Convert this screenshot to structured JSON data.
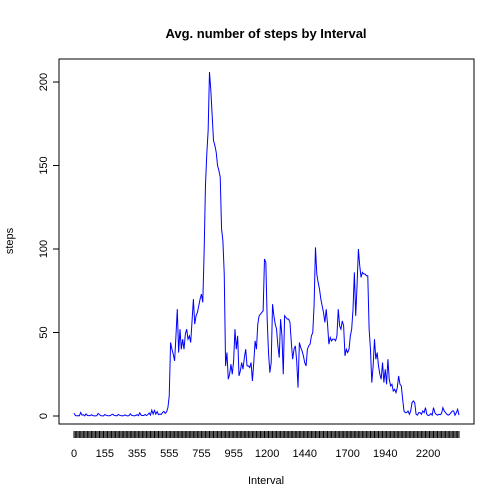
{
  "chart_data": {
    "type": "line",
    "title": "Avg. number of steps by Interval",
    "xlabel": "Interval",
    "ylabel": "steps",
    "ylim": [
      0,
      206
    ],
    "y_ticks": [
      0,
      50,
      100,
      150,
      200
    ],
    "x_tick_labels": [
      "0",
      "155",
      "355",
      "555",
      "755",
      "955",
      "1200",
      "1440",
      "1700",
      "1940",
      "2200"
    ],
    "x_tick_positions": [
      0,
      23,
      47,
      71,
      95,
      119,
      144,
      172,
      204,
      232,
      264
    ],
    "n_intervals": 288,
    "grid": false,
    "legend": "none",
    "series": [
      {
        "color": "#0000ff",
        "points": [
          [
            0,
            1.7
          ],
          [
            1,
            0.3
          ],
          [
            2,
            0.1
          ],
          [
            3,
            0.2
          ],
          [
            4,
            0.1
          ],
          [
            5,
            2.1
          ],
          [
            6,
            0.5
          ],
          [
            7,
            0.8
          ],
          [
            8,
            0.1
          ],
          [
            9,
            1.3
          ],
          [
            10,
            0.3
          ],
          [
            11,
            0.2
          ],
          [
            12,
            0.2
          ],
          [
            13,
            0.7
          ],
          [
            14,
            0.3
          ],
          [
            15,
            0.1
          ],
          [
            16,
            0.1
          ],
          [
            17,
            0.2
          ],
          [
            18,
            1.5
          ],
          [
            19,
            0.8
          ],
          [
            20,
            0.2
          ],
          [
            21,
            0.1
          ],
          [
            22,
            0.1
          ],
          [
            23,
            0.9
          ],
          [
            24,
            0.4
          ],
          [
            25,
            0.2
          ],
          [
            26,
            0.1
          ],
          [
            27,
            0.3
          ],
          [
            28,
            0.8
          ],
          [
            29,
            1.1
          ],
          [
            30,
            0.3
          ],
          [
            31,
            0.2
          ],
          [
            32,
            0.1
          ],
          [
            33,
            0.9
          ],
          [
            34,
            0.5
          ],
          [
            35,
            0.2
          ],
          [
            36,
            0.1
          ],
          [
            37,
            0.2
          ],
          [
            38,
            0.7
          ],
          [
            39,
            0.2
          ],
          [
            40,
            0.1
          ],
          [
            41,
            0.2
          ],
          [
            42,
            1.3
          ],
          [
            43,
            0.4
          ],
          [
            44,
            0.2
          ],
          [
            45,
            0.1
          ],
          [
            46,
            0.3
          ],
          [
            47,
            0.8
          ],
          [
            48,
            0.2
          ],
          [
            49,
            1.9
          ],
          [
            50,
            0.5
          ],
          [
            51,
            0.3
          ],
          [
            52,
            0.3
          ],
          [
            53,
            0.9
          ],
          [
            54,
            0.3
          ],
          [
            55,
            0.8
          ],
          [
            56,
            1.8
          ],
          [
            57,
            0.5
          ],
          [
            58,
            3.5
          ],
          [
            59,
            1.2
          ],
          [
            60,
            3.3
          ],
          [
            61,
            1.1
          ],
          [
            62,
            2.6
          ],
          [
            63,
            0.8
          ],
          [
            64,
            1.2
          ],
          [
            65,
            0.9
          ],
          [
            66,
            2.1
          ],
          [
            67,
            2.8
          ],
          [
            68,
            1.6
          ],
          [
            69,
            2.4
          ],
          [
            70,
            5.0
          ],
          [
            71,
            12.0
          ],
          [
            72,
            44.0
          ],
          [
            73,
            40.0
          ],
          [
            74,
            37.0
          ],
          [
            75,
            33.0
          ],
          [
            76,
            48.0
          ],
          [
            77,
            64.0
          ],
          [
            78,
            38.0
          ],
          [
            79,
            52.0
          ],
          [
            80,
            40.0
          ],
          [
            81,
            46.0
          ],
          [
            82,
            40.0
          ],
          [
            83,
            49.0
          ],
          [
            84,
            52.0
          ],
          [
            85,
            46.0
          ],
          [
            86,
            48.0
          ],
          [
            87,
            44.0
          ],
          [
            88,
            57.0
          ],
          [
            89,
            70.0
          ],
          [
            90,
            55.0
          ],
          [
            91,
            60.0
          ],
          [
            92,
            62.0
          ],
          [
            93,
            66.0
          ],
          [
            94,
            70.0
          ],
          [
            95,
            73.0
          ],
          [
            96,
            68.0
          ],
          [
            97,
            98.0
          ],
          [
            98,
            138.0
          ],
          [
            99,
            157.0
          ],
          [
            100,
            171.0
          ],
          [
            101,
            206.0
          ],
          [
            102,
            195.0
          ],
          [
            103,
            180.0
          ],
          [
            104,
            165.0
          ],
          [
            105,
            162.0
          ],
          [
            106,
            158.0
          ],
          [
            107,
            150.0
          ],
          [
            108,
            147.0
          ],
          [
            109,
            143.0
          ],
          [
            110,
            112.0
          ],
          [
            111,
            105.0
          ],
          [
            112,
            85.0
          ],
          [
            113,
            30.0
          ],
          [
            114,
            38.0
          ],
          [
            115,
            22.0
          ],
          [
            116,
            25.0
          ],
          [
            117,
            31.0
          ],
          [
            118,
            25.0
          ],
          [
            119,
            33.0
          ],
          [
            120,
            52.0
          ],
          [
            121,
            40.0
          ],
          [
            122,
            48.0
          ],
          [
            123,
            24.0
          ],
          [
            124,
            27.0
          ],
          [
            125,
            32.0
          ],
          [
            126,
            28.0
          ],
          [
            127,
            35.0
          ],
          [
            128,
            40.0
          ],
          [
            129,
            30.0
          ],
          [
            130,
            30.0
          ],
          [
            131,
            29.0
          ],
          [
            132,
            32.0
          ],
          [
            133,
            21.0
          ],
          [
            134,
            32.0
          ],
          [
            135,
            45.0
          ],
          [
            136,
            40.0
          ],
          [
            137,
            55.0
          ],
          [
            138,
            60.0
          ],
          [
            139,
            61.0
          ],
          [
            140,
            62.0
          ],
          [
            141,
            63.0
          ],
          [
            142,
            94.0
          ],
          [
            143,
            92.0
          ],
          [
            144,
            58.0
          ],
          [
            145,
            38.0
          ],
          [
            146,
            26.0
          ],
          [
            147,
            32.0
          ],
          [
            148,
            67.0
          ],
          [
            149,
            60.0
          ],
          [
            150,
            55.0
          ],
          [
            151,
            52.0
          ],
          [
            152,
            42.0
          ],
          [
            153,
            35.0
          ],
          [
            154,
            58.0
          ],
          [
            155,
            48.0
          ],
          [
            156,
            25.0
          ],
          [
            157,
            60.0
          ],
          [
            158,
            59.0
          ],
          [
            159,
            58.0
          ],
          [
            160,
            58.0
          ],
          [
            161,
            56.0
          ],
          [
            162,
            44.0
          ],
          [
            163,
            34.0
          ],
          [
            164,
            40.0
          ],
          [
            165,
            42.0
          ],
          [
            166,
            33.0
          ],
          [
            167,
            17.0
          ],
          [
            168,
            44.0
          ],
          [
            169,
            41.0
          ],
          [
            170,
            39.0
          ],
          [
            171,
            36.0
          ],
          [
            172,
            32.0
          ],
          [
            173,
            30.0
          ],
          [
            174,
            40.0
          ],
          [
            175,
            42.0
          ],
          [
            176,
            43.0
          ],
          [
            177,
            48.0
          ],
          [
            178,
            50.0
          ],
          [
            179,
            67.0
          ],
          [
            180,
            101.0
          ],
          [
            181,
            85.0
          ],
          [
            182,
            80.0
          ],
          [
            183,
            76.0
          ],
          [
            184,
            70.0
          ],
          [
            185,
            66.0
          ],
          [
            186,
            62.0
          ],
          [
            187,
            56.0
          ],
          [
            188,
            64.0
          ],
          [
            189,
            55.0
          ],
          [
            190,
            43.0
          ],
          [
            191,
            47.0
          ],
          [
            192,
            45.0
          ],
          [
            193,
            46.0
          ],
          [
            194,
            46.0
          ],
          [
            195,
            45.0
          ],
          [
            196,
            48.0
          ],
          [
            197,
            64.0
          ],
          [
            198,
            54.0
          ],
          [
            199,
            52.0
          ],
          [
            200,
            57.0
          ],
          [
            201,
            54.0
          ],
          [
            202,
            36.0
          ],
          [
            203,
            40.0
          ],
          [
            204,
            38.0
          ],
          [
            205,
            40.0
          ],
          [
            206,
            48.0
          ],
          [
            207,
            52.0
          ],
          [
            208,
            64.0
          ],
          [
            209,
            86.0
          ],
          [
            210,
            60.0
          ],
          [
            211,
            78.0
          ],
          [
            212,
            100.0
          ],
          [
            213,
            90.0
          ],
          [
            214,
            83.0
          ],
          [
            215,
            86.0
          ],
          [
            216,
            85.0
          ],
          [
            217,
            85.0
          ],
          [
            218,
            84.0
          ],
          [
            219,
            84.0
          ],
          [
            220,
            52.0
          ],
          [
            221,
            40.0
          ],
          [
            222,
            20.0
          ],
          [
            223,
            30.0
          ],
          [
            224,
            46.0
          ],
          [
            225,
            34.0
          ],
          [
            226,
            38.0
          ],
          [
            227,
            30.0
          ],
          [
            228,
            25.0
          ],
          [
            229,
            22.0
          ],
          [
            230,
            32.0
          ],
          [
            231,
            20.0
          ],
          [
            232,
            28.0
          ],
          [
            233,
            19.0
          ],
          [
            234,
            34.0
          ],
          [
            235,
            22.0
          ],
          [
            236,
            18.0
          ],
          [
            237,
            19.0
          ],
          [
            238,
            15.0
          ],
          [
            239,
            16.0
          ],
          [
            240,
            14.0
          ],
          [
            241,
            17.0
          ],
          [
            242,
            24.0
          ],
          [
            243,
            19.0
          ],
          [
            244,
            18.0
          ],
          [
            245,
            10.0
          ],
          [
            246,
            3.0
          ],
          [
            247,
            2.0
          ],
          [
            248,
            2.0
          ],
          [
            249,
            3.0
          ],
          [
            250,
            1.0
          ],
          [
            251,
            3.0
          ],
          [
            252,
            8.0
          ],
          [
            253,
            9.0
          ],
          [
            254,
            8.0
          ],
          [
            255,
            1.0
          ],
          [
            256,
            0.5
          ],
          [
            257,
            2.0
          ],
          [
            258,
            2.0
          ],
          [
            259,
            1.0
          ],
          [
            260,
            3.0
          ],
          [
            261,
            2.0
          ],
          [
            262,
            5.0
          ],
          [
            263,
            1.0
          ],
          [
            264,
            0.3
          ],
          [
            265,
            0.5
          ],
          [
            266,
            1.5
          ],
          [
            267,
            0.5
          ],
          [
            268,
            5.0
          ],
          [
            269,
            2.0
          ],
          [
            270,
            1.0
          ],
          [
            271,
            0.5
          ],
          [
            272,
            1.0
          ],
          [
            273,
            0.8
          ],
          [
            274,
            1.5
          ],
          [
            275,
            5.0
          ],
          [
            276,
            3.0
          ],
          [
            277,
            2.0
          ],
          [
            278,
            1.0
          ],
          [
            279,
            0.5
          ],
          [
            280,
            1.0
          ],
          [
            281,
            2.0
          ],
          [
            282,
            3.0
          ],
          [
            283,
            3.0
          ],
          [
            284,
            0.5
          ],
          [
            285,
            2.0
          ],
          [
            286,
            4.0
          ],
          [
            287,
            0.5
          ]
        ]
      }
    ]
  }
}
